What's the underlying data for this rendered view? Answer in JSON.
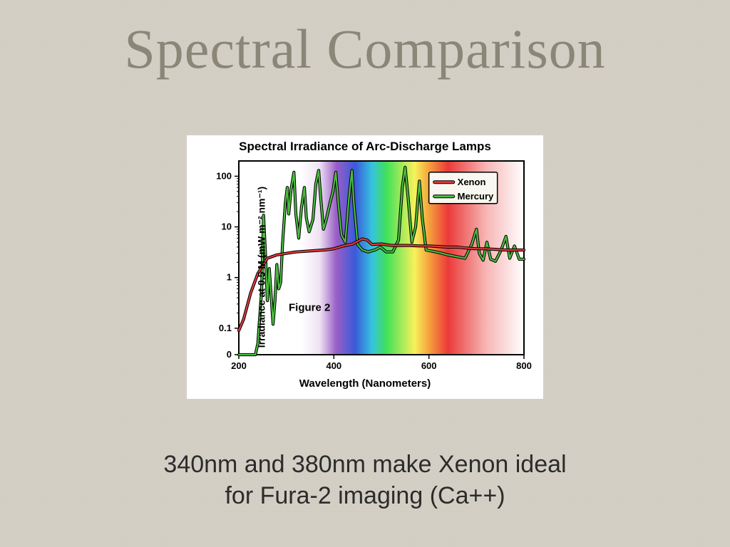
{
  "title": "Spectral Comparison",
  "subtitle_line1": "340nm and 380nm make Xenon ideal",
  "subtitle_line2": "for Fura-2 imaging (Ca++)",
  "chart": {
    "type": "line",
    "title": "Spectral Irradiance of Arc-Discharge Lamps",
    "xlabel": "Wavelength (Nanometers)",
    "ylabel": "Irradiance at 0.5 M (mW m⁻² nm⁻¹)",
    "figure_label": "Figure 2",
    "xlim": [
      200,
      800
    ],
    "xtick_step": 200,
    "xticks": [
      200,
      400,
      600,
      800
    ],
    "yscale": "log",
    "ytick_labels": [
      "0",
      "0.1",
      "1",
      "10",
      "100"
    ],
    "ytick_values": [
      0.03,
      0.1,
      1,
      10,
      100
    ],
    "border_color": "#000000",
    "border_width": 2,
    "background_spectrum": {
      "stops": [
        {
          "wavelength": 200,
          "color": "#ffffff"
        },
        {
          "wavelength": 330,
          "color": "#ffffff"
        },
        {
          "wavelength": 370,
          "color": "#efe2f3"
        },
        {
          "wavelength": 405,
          "color": "#9a5fc7"
        },
        {
          "wavelength": 445,
          "color": "#3a5ad9"
        },
        {
          "wavelength": 480,
          "color": "#36c2e0"
        },
        {
          "wavelength": 510,
          "color": "#3fe05a"
        },
        {
          "wavelength": 570,
          "color": "#f7f25a"
        },
        {
          "wavelength": 600,
          "color": "#f5a23c"
        },
        {
          "wavelength": 640,
          "color": "#eb3a3a"
        },
        {
          "wavelength": 720,
          "color": "#f7b5b5"
        },
        {
          "wavelength": 800,
          "color": "#ffffff"
        }
      ]
    },
    "legend": {
      "x": 600,
      "y_top": 120,
      "background": "#f8f8f0",
      "border_color": "#000000",
      "items": [
        {
          "label": "Xenon",
          "color": "#e23a3a"
        },
        {
          "label": "Mercury",
          "color": "#4bbd3f"
        }
      ]
    },
    "line_width": 2.2,
    "label_fontsize": 15,
    "tick_fontsize": 13,
    "series": {
      "xenon": {
        "color": "#e23a3a",
        "stroke_outline": "#000000",
        "points": [
          [
            200,
            0.09
          ],
          [
            210,
            0.15
          ],
          [
            225,
            0.5
          ],
          [
            240,
            1.2
          ],
          [
            260,
            2.4
          ],
          [
            280,
            2.8
          ],
          [
            300,
            3.0
          ],
          [
            320,
            3.2
          ],
          [
            340,
            3.3
          ],
          [
            360,
            3.4
          ],
          [
            380,
            3.5
          ],
          [
            400,
            3.7
          ],
          [
            420,
            4.2
          ],
          [
            440,
            4.6
          ],
          [
            460,
            5.8
          ],
          [
            470,
            5.5
          ],
          [
            480,
            4.5
          ],
          [
            500,
            4.6
          ],
          [
            520,
            4.3
          ],
          [
            540,
            4.3
          ],
          [
            560,
            4.3
          ],
          [
            580,
            4.2
          ],
          [
            600,
            4.2
          ],
          [
            620,
            4.1
          ],
          [
            640,
            4.0
          ],
          [
            660,
            4.0
          ],
          [
            680,
            3.8
          ],
          [
            700,
            3.7
          ],
          [
            720,
            3.7
          ],
          [
            740,
            3.6
          ],
          [
            760,
            3.5
          ],
          [
            780,
            3.5
          ],
          [
            800,
            3.5
          ]
        ]
      },
      "mercury": {
        "color": "#4bbd3f",
        "stroke_outline": "#000000",
        "points": [
          [
            200,
            0.03
          ],
          [
            235,
            0.03
          ],
          [
            240,
            0.05
          ],
          [
            248,
            0.55
          ],
          [
            252,
            17
          ],
          [
            256,
            3
          ],
          [
            260,
            0.35
          ],
          [
            264,
            1.5
          ],
          [
            268,
            0.45
          ],
          [
            272,
            0.12
          ],
          [
            276,
            0.35
          ],
          [
            280,
            1.8
          ],
          [
            284,
            0.6
          ],
          [
            288,
            0.8
          ],
          [
            292,
            4.5
          ],
          [
            298,
            30
          ],
          [
            302,
            60
          ],
          [
            305,
            18
          ],
          [
            310,
            55
          ],
          [
            316,
            120
          ],
          [
            320,
            18
          ],
          [
            326,
            6
          ],
          [
            332,
            25
          ],
          [
            338,
            60
          ],
          [
            342,
            15
          ],
          [
            348,
            8
          ],
          [
            356,
            14
          ],
          [
            362,
            70
          ],
          [
            368,
            130
          ],
          [
            372,
            40
          ],
          [
            378,
            9
          ],
          [
            384,
            14
          ],
          [
            392,
            30
          ],
          [
            398,
            50
          ],
          [
            404,
            120
          ],
          [
            410,
            25
          ],
          [
            416,
            7
          ],
          [
            424,
            5
          ],
          [
            432,
            40
          ],
          [
            438,
            130
          ],
          [
            442,
            30
          ],
          [
            450,
            4.5
          ],
          [
            460,
            3.5
          ],
          [
            472,
            3.2
          ],
          [
            486,
            3.5
          ],
          [
            498,
            4
          ],
          [
            510,
            3.2
          ],
          [
            524,
            3.2
          ],
          [
            536,
            5.5
          ],
          [
            544,
            60
          ],
          [
            550,
            150
          ],
          [
            556,
            40
          ],
          [
            564,
            5
          ],
          [
            572,
            10
          ],
          [
            580,
            80
          ],
          [
            586,
            15
          ],
          [
            594,
            3.5
          ],
          [
            608,
            3.3
          ],
          [
            622,
            3.1
          ],
          [
            640,
            2.8
          ],
          [
            658,
            2.6
          ],
          [
            676,
            2.4
          ],
          [
            690,
            4.5
          ],
          [
            700,
            9
          ],
          [
            706,
            3
          ],
          [
            714,
            2.2
          ],
          [
            722,
            5
          ],
          [
            730,
            2.3
          ],
          [
            740,
            2.1
          ],
          [
            752,
            3.5
          ],
          [
            762,
            6.5
          ],
          [
            770,
            2.4
          ],
          [
            780,
            4.2
          ],
          [
            790,
            2.3
          ],
          [
            800,
            2.3
          ]
        ]
      }
    }
  }
}
